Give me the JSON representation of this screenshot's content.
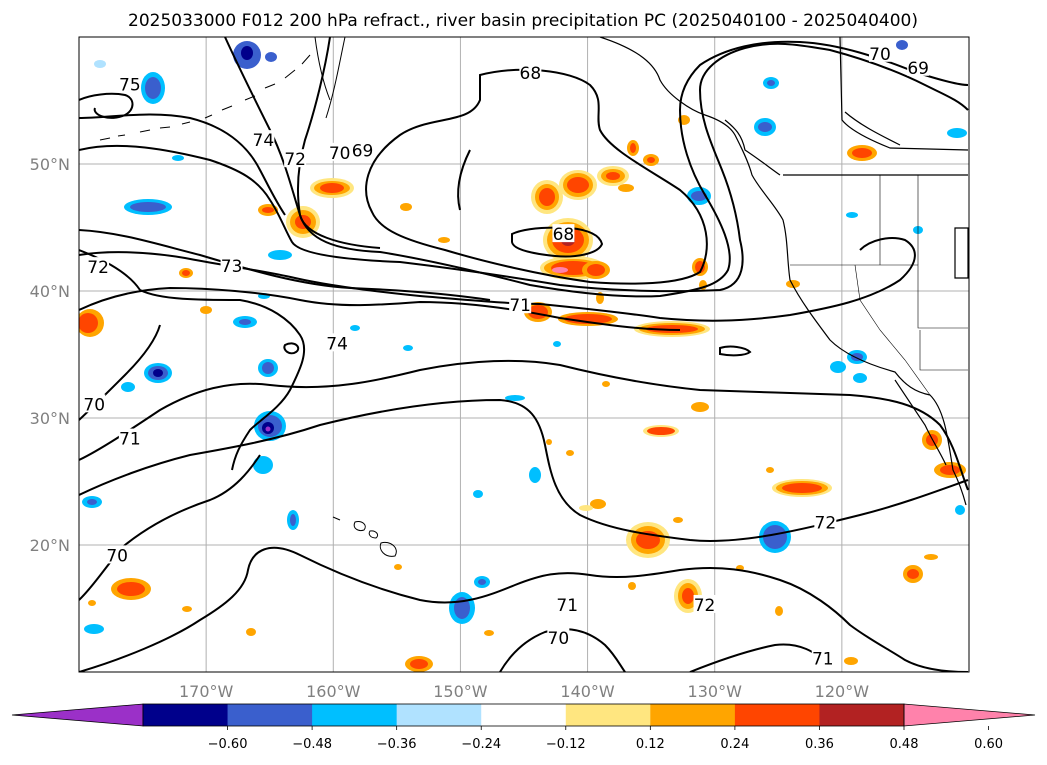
{
  "title": "2025033000 F012 200 hPa refract., river basin precipitation PC (2025040100 - 2025040400)",
  "map": {
    "lon_range": [
      -180,
      -110
    ],
    "lat_range": [
      10,
      60
    ],
    "lon_ticks": [
      {
        "value": -170,
        "label": "170°W"
      },
      {
        "value": -160,
        "label": "160°W"
      },
      {
        "value": -150,
        "label": "150°W"
      },
      {
        "value": -140,
        "label": "140°W"
      },
      {
        "value": -130,
        "label": "130°W"
      },
      {
        "value": -120,
        "label": "120°W"
      }
    ],
    "lat_ticks": [
      {
        "value": 50,
        "label": "50°N"
      },
      {
        "value": 40,
        "label": "40°N"
      },
      {
        "value": 30,
        "label": "30°N"
      },
      {
        "value": 20,
        "label": "20°N"
      }
    ],
    "grid": true,
    "contour_labels": [
      {
        "text": "75",
        "lon": -176,
        "lat": 56.2
      },
      {
        "text": "74",
        "lon": -165.5,
        "lat": 51.8
      },
      {
        "text": "72",
        "lon": -163,
        "lat": 50.3
      },
      {
        "text": "70",
        "lon": -159.5,
        "lat": 50.8
      },
      {
        "text": "69",
        "lon": -157.7,
        "lat": 51.0
      },
      {
        "text": "68",
        "lon": -144.5,
        "lat": 57.1
      },
      {
        "text": "68",
        "lon": -141.9,
        "lat": 44.4
      },
      {
        "text": "70",
        "lon": -117,
        "lat": 58.6
      },
      {
        "text": "69",
        "lon": -114,
        "lat": 57.5
      },
      {
        "text": "73",
        "lon": -168,
        "lat": 41.9
      },
      {
        "text": "72",
        "lon": -178.5,
        "lat": 41.8
      },
      {
        "text": "71",
        "lon": -145.3,
        "lat": 38.8
      },
      {
        "text": "74",
        "lon": -159.7,
        "lat": 35.8
      },
      {
        "text": "70",
        "lon": -178.8,
        "lat": 31.0
      },
      {
        "text": "71",
        "lon": -176,
        "lat": 28.3
      },
      {
        "text": "72",
        "lon": -121.3,
        "lat": 21.7
      },
      {
        "text": "70",
        "lon": -177,
        "lat": 19.1
      },
      {
        "text": "71",
        "lon": -141.6,
        "lat": 15.2
      },
      {
        "text": "72",
        "lon": -130.8,
        "lat": 15.2
      },
      {
        "text": "70",
        "lon": -142.3,
        "lat": 12.6
      },
      {
        "text": "71",
        "lon": -121.5,
        "lat": 11.0
      }
    ],
    "colors": {
      "contour": "#000000",
      "grid": "#b0b0b0",
      "land": "#000000"
    }
  },
  "colorbar": {
    "ticks": [
      "−0.60",
      "−0.48",
      "−0.36",
      "−0.24",
      "−0.12",
      "0.12",
      "0.24",
      "0.36",
      "0.48",
      "0.60"
    ],
    "colors": [
      "#9b30c8",
      "#00008b",
      "#3a5fcd",
      "#00bfff",
      "#b0e2ff",
      "#ffffff",
      "#ffe680",
      "#ffa500",
      "#ff4500",
      "#b22222",
      "#ff82ab"
    ],
    "extend": "both"
  }
}
